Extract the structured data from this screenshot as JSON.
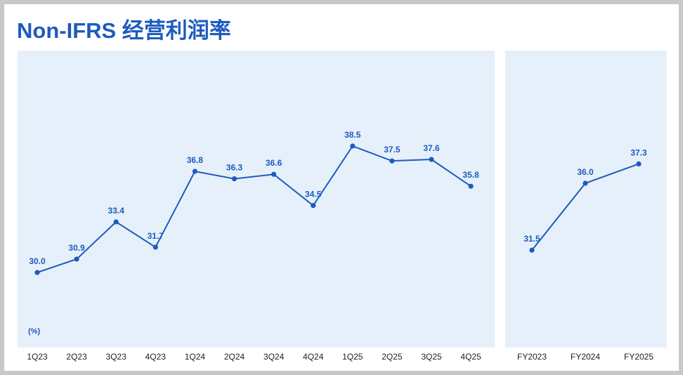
{
  "page_title": "Non-IFRS 经营利润率",
  "colors": {
    "line": "#1d5bbf",
    "panel_bg": "#e6f0fa",
    "title": "#1d5bbf",
    "border": "#c8c8c8"
  },
  "chart_data": [
    {
      "type": "line",
      "title": "",
      "unit_label": "(%)",
      "categories": [
        "1Q23",
        "2Q23",
        "3Q23",
        "4Q23",
        "1Q24",
        "2Q24",
        "3Q24",
        "4Q24",
        "1Q25",
        "2Q25",
        "3Q25",
        "4Q25"
      ],
      "values": [
        30.0,
        30.9,
        33.4,
        31.7,
        36.8,
        36.3,
        36.6,
        34.5,
        38.5,
        37.5,
        37.6,
        35.8
      ],
      "data_labels": [
        "30.0",
        "30.9",
        "33.4",
        "31.7",
        "36.8",
        "36.3",
        "36.6",
        "34.5",
        "38.5",
        "37.5",
        "37.6",
        "35.8"
      ],
      "ylim": [
        26,
        44
      ],
      "grid": false,
      "legend": "none"
    },
    {
      "type": "line",
      "title": "",
      "categories": [
        "FY2023",
        "FY2024",
        "FY2025"
      ],
      "values": [
        31.5,
        36.0,
        37.3
      ],
      "data_labels": [
        "31.5",
        "36.0",
        "37.3"
      ],
      "ylim": [
        26,
        44
      ],
      "grid": false,
      "legend": "none"
    }
  ]
}
